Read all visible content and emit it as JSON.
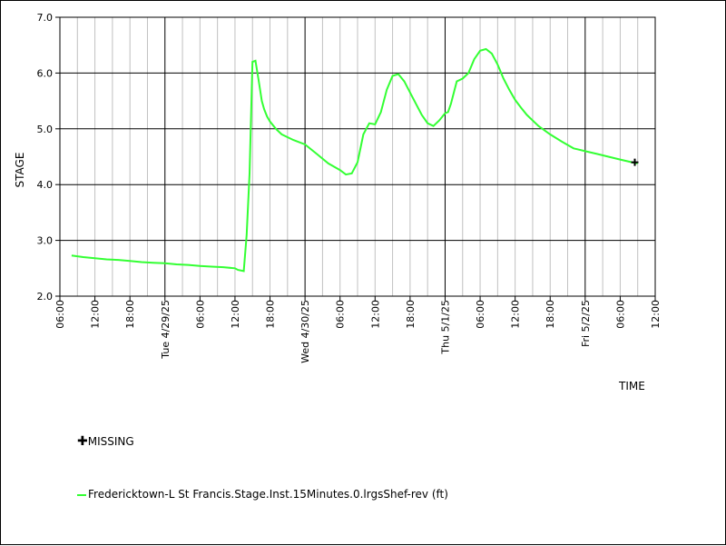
{
  "chart_data": {
    "type": "line",
    "xlabel": "TIME",
    "ylabel": "STAGE",
    "ylim": [
      2.0,
      7.0
    ],
    "y_ticks": [
      "2.0",
      "3.0",
      "4.0",
      "5.0",
      "6.0",
      "7.0"
    ],
    "x_range_hours": [
      6,
      108
    ],
    "x_ticks": [
      {
        "hour": 6,
        "label": "06:00"
      },
      {
        "hour": 12,
        "label": "12:00"
      },
      {
        "hour": 18,
        "label": "18:00"
      },
      {
        "hour": 24,
        "label": "Tue 4/29/25"
      },
      {
        "hour": 30,
        "label": "06:00"
      },
      {
        "hour": 36,
        "label": "12:00"
      },
      {
        "hour": 42,
        "label": "18:00"
      },
      {
        "hour": 48,
        "label": "Wed 4/30/25"
      },
      {
        "hour": 54,
        "label": "06:00"
      },
      {
        "hour": 60,
        "label": "12:00"
      },
      {
        "hour": 66,
        "label": "18:00"
      },
      {
        "hour": 72,
        "label": "Thu 5/1/25"
      },
      {
        "hour": 78,
        "label": "06:00"
      },
      {
        "hour": 84,
        "label": "12:00"
      },
      {
        "hour": 90,
        "label": "18:00"
      },
      {
        "hour": 96,
        "label": "Fri 5/2/25"
      },
      {
        "hour": 102,
        "label": "06:00"
      },
      {
        "hour": 108,
        "label": "12:00"
      }
    ],
    "grid": true,
    "series": [
      {
        "name": "Fredericktown-L St Francis.Stage.Inst.15Minutes.0.lrgsShef-rev (ft)",
        "color": "#33ff33",
        "x": [
          8.0,
          10,
          12,
          14,
          16,
          18,
          20,
          22,
          24,
          26,
          28,
          30,
          32,
          34,
          36,
          36.5,
          37.5,
          38,
          38.5,
          39,
          39.5,
          40,
          40.3,
          40.6,
          41,
          41.5,
          42,
          43,
          44,
          46,
          48,
          50,
          52,
          54,
          55,
          56,
          57,
          58,
          59,
          60,
          61,
          62,
          63,
          64,
          65,
          66,
          67,
          68,
          69,
          70,
          71,
          72,
          72.5,
          73,
          74,
          75,
          76,
          77,
          78,
          79,
          80,
          81,
          82,
          83,
          84,
          85,
          86,
          88,
          90,
          92,
          94,
          96,
          98,
          100,
          102,
          104,
          105
        ],
        "y": [
          2.73,
          2.7,
          2.68,
          2.66,
          2.65,
          2.63,
          2.61,
          2.6,
          2.59,
          2.57,
          2.56,
          2.54,
          2.53,
          2.52,
          2.5,
          2.47,
          2.45,
          3.1,
          4.2,
          6.2,
          6.22,
          5.9,
          5.7,
          5.5,
          5.35,
          5.22,
          5.13,
          5.0,
          4.9,
          4.8,
          4.72,
          4.55,
          4.38,
          4.26,
          4.18,
          4.2,
          4.4,
          4.9,
          5.1,
          5.08,
          5.3,
          5.7,
          5.95,
          5.98,
          5.85,
          5.65,
          5.45,
          5.25,
          5.1,
          5.05,
          5.15,
          5.28,
          5.3,
          5.45,
          5.85,
          5.9,
          6.0,
          6.25,
          6.4,
          6.43,
          6.35,
          6.15,
          5.9,
          5.7,
          5.52,
          5.38,
          5.25,
          5.05,
          4.9,
          4.77,
          4.65,
          4.6,
          4.55,
          4.5,
          4.45,
          4.4,
          4.38
        ]
      }
    ],
    "missing_points": [
      {
        "x": 104.5,
        "y": 4.4
      }
    ],
    "legend": [
      {
        "marker": "plus",
        "label": "MISSING"
      },
      {
        "marker": "line",
        "color": "#33ff33",
        "label": "Fredericktown-L St Francis.Stage.Inst.15Minutes.0.lrgsShef-rev (ft)"
      }
    ]
  }
}
